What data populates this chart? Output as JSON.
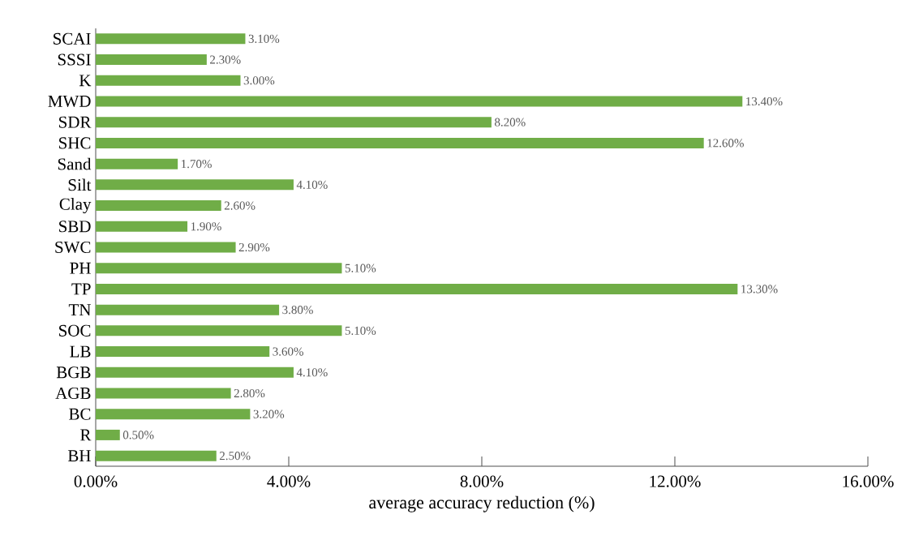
{
  "chart_data": {
    "type": "bar",
    "orientation": "horizontal",
    "xlabel": "average accuracy reduction (%)",
    "categories": [
      "SCAI",
      "SSSI",
      "K",
      "MWD",
      "SDR",
      "SHC",
      "Sand",
      "Silt",
      "Clay",
      "SBD",
      "SWC",
      "PH",
      "TP",
      "TN",
      "SOC",
      "LB",
      "BGB",
      "AGB",
      "BC",
      "R",
      "BH"
    ],
    "values": [
      3.1,
      2.3,
      3.0,
      13.4,
      8.2,
      12.6,
      1.7,
      4.1,
      2.6,
      1.9,
      2.9,
      5.1,
      13.3,
      3.8,
      5.1,
      3.6,
      4.1,
      2.8,
      3.2,
      0.5,
      2.5
    ],
    "value_labels": [
      "3.10%",
      "2.30%",
      "3.00%",
      "13.40%",
      "8.20%",
      "12.60%",
      "1.70%",
      "4.10%",
      "2.60%",
      "1.90%",
      "2.90%",
      "5.10%",
      "13.30%",
      "3.80%",
      "5.10%",
      "3.60%",
      "4.10%",
      "2.80%",
      "3.20%",
      "0.50%",
      "2.50%"
    ],
    "color": "#70ad47",
    "xlim": [
      0,
      16
    ],
    "xticks": [
      {
        "value": 0,
        "label": "0.00%"
      },
      {
        "value": 4,
        "label": "4.00%"
      },
      {
        "value": 8,
        "label": "8.00%"
      },
      {
        "value": 12,
        "label": "12.00%"
      },
      {
        "value": 16,
        "label": "16.00%"
      }
    ],
    "grid": false,
    "legend": false
  }
}
